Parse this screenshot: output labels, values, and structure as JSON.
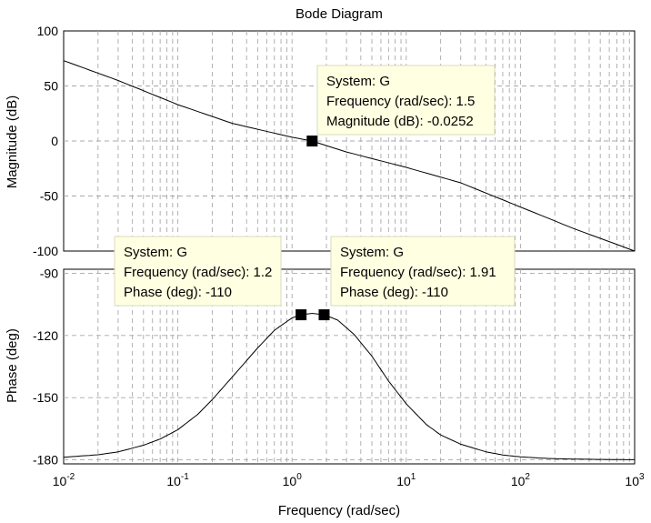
{
  "chart_data": {
    "type": "line",
    "title": "Bode Diagram",
    "xlabel": "Frequency  (rad/sec)",
    "x_scale": "log",
    "xlim": [
      0.01,
      1000
    ],
    "x_ticks": [
      0.01,
      0.1,
      1,
      10,
      100,
      1000
    ],
    "x_tick_labels": [
      {
        "base": "10",
        "exp": "-2"
      },
      {
        "base": "10",
        "exp": "-1"
      },
      {
        "base": "10",
        "exp": "0"
      },
      {
        "base": "10",
        "exp": "1"
      },
      {
        "base": "10",
        "exp": "2"
      },
      {
        "base": "10",
        "exp": "3"
      }
    ],
    "grid": true,
    "panels": [
      {
        "name": "magnitude",
        "ylabel": "Magnitude (dB)",
        "ylim": [
          -100,
          100
        ],
        "y_ticks": [
          100,
          50,
          0,
          -50,
          -100
        ],
        "y_tick_labels": [
          "100",
          "50",
          "0",
          "-50",
          "-100"
        ],
        "x": [
          0.01,
          0.03,
          0.1,
          0.3,
          1,
          1.5,
          3,
          10,
          30,
          100,
          300,
          1000
        ],
        "y": [
          73,
          55,
          33,
          16,
          3.4,
          -0.03,
          -10,
          -24,
          -38,
          -60,
          -80,
          -100
        ],
        "datatips": [
          {
            "x": 1.5,
            "y": -0.0252,
            "lines": [
              "System: G",
              "Frequency (rad/sec): 1.5",
              "Magnitude (dB): -0.0252"
            ]
          }
        ]
      },
      {
        "name": "phase",
        "ylabel": "Phase (deg)",
        "ylim": [
          -182,
          -88
        ],
        "y_ticks": [
          -90,
          -120,
          -150,
          -180
        ],
        "y_tick_labels": [
          "-90",
          "-120",
          "-150",
          "-180"
        ],
        "x": [
          0.01,
          0.02,
          0.03,
          0.05,
          0.07,
          0.1,
          0.15,
          0.2,
          0.3,
          0.5,
          0.7,
          1,
          1.2,
          1.5,
          1.91,
          2.5,
          3.5,
          5,
          7,
          10,
          15,
          20,
          30,
          50,
          70,
          100,
          150,
          200,
          300,
          500,
          1000
        ],
        "y": [
          -178.8,
          -177.6,
          -176.2,
          -173.0,
          -170.0,
          -165.5,
          -158.0,
          -151.0,
          -140.0,
          -126.0,
          -117.5,
          -111.5,
          -110.0,
          -109.3,
          -110.0,
          -112.5,
          -119.5,
          -130.0,
          -142.0,
          -153.0,
          -163.0,
          -168.0,
          -172.5,
          -176.2,
          -177.7,
          -178.6,
          -179.2,
          -179.5,
          -179.7,
          -179.85,
          -180.0
        ],
        "datatips": [
          {
            "x": 1.2,
            "y": -110,
            "lines": [
              "System: G",
              "Frequency (rad/sec): 1.2",
              "Phase (deg): -110"
            ]
          },
          {
            "x": 1.91,
            "y": -110,
            "lines": [
              "System: G",
              "Frequency (rad/sec): 1.91",
              "Phase (deg): -110"
            ]
          }
        ]
      }
    ]
  }
}
